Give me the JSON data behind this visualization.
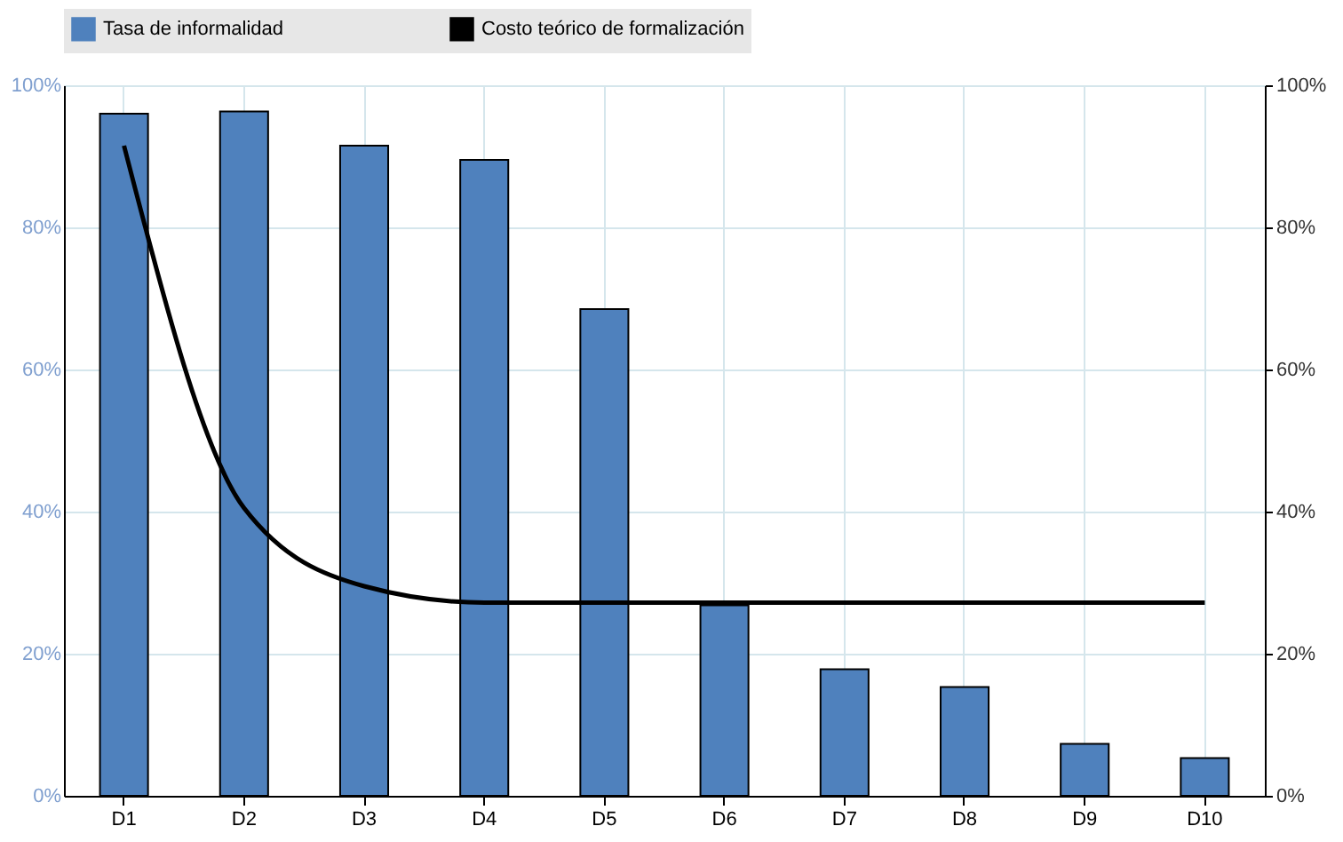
{
  "chart_data": {
    "type": "bar",
    "categories": [
      "D1",
      "D2",
      "D3",
      "D4",
      "D5",
      "D6",
      "D7",
      "D8",
      "D9",
      "D10"
    ],
    "series": [
      {
        "name": "Tasa de informalidad",
        "color": "#4f81bd",
        "values": [
          96,
          96.3,
          91.5,
          89.5,
          68.5,
          26.8,
          17.8,
          15.3,
          7.3,
          5.3
        ]
      },
      {
        "name": "Costo teórico de formalización",
        "type": "line",
        "axis": "y2",
        "color": "#000000",
        "values": [
          91.5,
          40.5,
          29.5,
          27.2,
          27.2,
          27.2,
          27.2,
          27.2,
          27.2,
          27.2
        ]
      }
    ],
    "ylim": [
      0,
      100
    ],
    "yticks": [
      {
        "value": 0,
        "label": "0%"
      },
      {
        "value": 20,
        "label": "20%"
      },
      {
        "value": 40,
        "label": "40%"
      },
      {
        "value": 60,
        "label": "60%"
      },
      {
        "value": 80,
        "label": "80%"
      },
      {
        "value": 100,
        "label": "100%"
      }
    ],
    "y2lim": [
      0,
      100
    ],
    "y2ticks": [
      {
        "value": 0,
        "label": "0%"
      },
      {
        "value": 20,
        "label": "20%"
      },
      {
        "value": 40,
        "label": "40%"
      },
      {
        "value": 60,
        "label": "60%"
      },
      {
        "value": 80,
        "label": "80%"
      },
      {
        "value": 100,
        "label": "100%"
      }
    ],
    "grid": true,
    "legend": "top",
    "line_style": "solid",
    "marker": "none"
  }
}
